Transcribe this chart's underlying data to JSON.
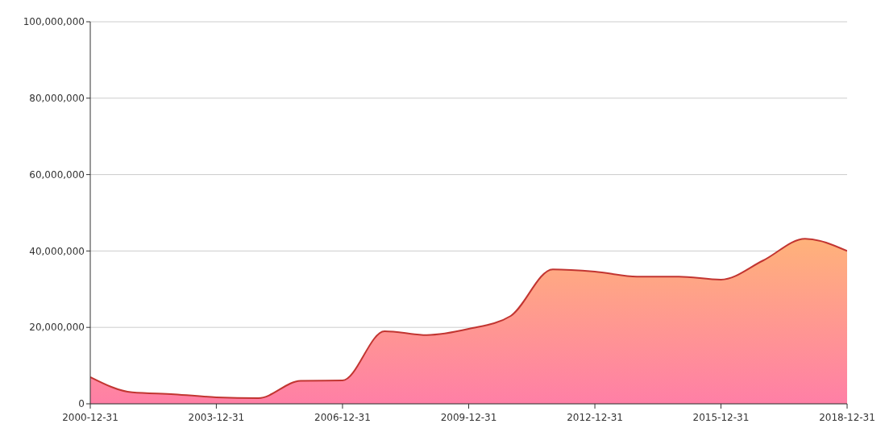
{
  "chart_data": {
    "type": "area",
    "x": [
      "2000-12-31",
      "2001-12-31",
      "2002-12-31",
      "2003-12-31",
      "2004-12-31",
      "2005-12-31",
      "2006-12-31",
      "2007-12-31",
      "2008-12-31",
      "2009-12-31",
      "2010-12-31",
      "2011-12-31",
      "2012-12-31",
      "2013-12-31",
      "2014-12-31",
      "2015-12-31",
      "2016-12-31",
      "2017-12-31",
      "2018-12-31"
    ],
    "series": [
      {
        "color": "#c23531",
        "values": [
          7000000,
          3000000,
          2500000,
          1700000,
          1500000,
          6000000,
          6100000,
          19000000,
          18000000,
          19600000,
          23000000,
          35200000,
          34600000,
          33300000,
          33300000,
          32500000,
          37500000,
          43200000,
          40000000
        ]
      }
    ],
    "xlim": [
      "2000-12-31",
      "2018-12-31"
    ],
    "xticks": [
      "2000-12-31",
      "2003-12-31",
      "2006-12-31",
      "2009-12-31",
      "2012-12-31",
      "2015-12-31",
      "2018-12-31"
    ],
    "ylim": [
      0,
      100000000
    ],
    "yticks": [
      {
        "value": 0,
        "label": "0"
      },
      {
        "value": 20000000,
        "label": "20,000,000"
      },
      {
        "value": 40000000,
        "label": "40,000,000"
      },
      {
        "value": 60000000,
        "label": "60,000,000"
      },
      {
        "value": 80000000,
        "label": "80,000,000"
      },
      {
        "value": 100000000,
        "label": "100,000,000"
      }
    ],
    "grid": "y"
  }
}
